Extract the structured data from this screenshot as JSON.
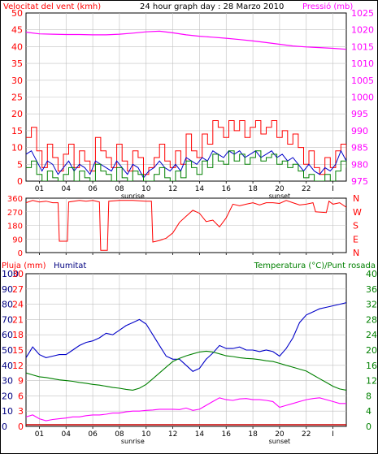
{
  "header": {
    "left_label": "Velocitat del vent (kmh)",
    "title": "24 hour graph day : 28 Marzo 2010",
    "right_label": "Pressió (mb)"
  },
  "colors": {
    "red": "#ff0000",
    "magenta": "#ff00ff",
    "blue": "#0000c8",
    "green": "#008000",
    "navy": "#000080",
    "dark_red": "#cc0000",
    "grid": "#c0c0c0"
  },
  "x_axis": {
    "tick_labels": [
      "01",
      "04",
      "06",
      "08",
      "10",
      "12",
      "14",
      "16",
      "18",
      "20",
      "22",
      "I"
    ],
    "sunrise_label": "sunrise",
    "sunset_label": "sunset"
  },
  "chart_data": [
    {
      "type": "line",
      "name": "wind",
      "left_axis": {
        "label": "Velocitat del vent (kmh)",
        "range": [
          0,
          50
        ],
        "ticks": [
          0,
          5,
          10,
          15,
          20,
          25,
          30,
          35,
          40,
          45,
          50
        ]
      },
      "right_axis": {
        "label": "Pressió (mb)",
        "range": [
          975,
          1025
        ],
        "ticks": [
          975,
          980,
          985,
          990,
          995,
          1000,
          1005,
          1010,
          1015,
          1020,
          1025
        ]
      },
      "x_range": [
        0,
        24
      ],
      "series": [
        {
          "color": "red",
          "axis": "left",
          "x": [
            0,
            0.4,
            0.8,
            1.2,
            1.6,
            2.0,
            2.4,
            2.8,
            3.2,
            3.6,
            4.0,
            4.4,
            4.8,
            5.2,
            5.6,
            6.0,
            6.4,
            6.8,
            7.2,
            7.6,
            8.0,
            8.4,
            8.8,
            9.2,
            9.6,
            10.0,
            10.4,
            10.8,
            11.2,
            11.6,
            12.0,
            12.4,
            12.8,
            13.2,
            13.6,
            14.0,
            14.4,
            14.8,
            15.2,
            15.6,
            16.0,
            16.4,
            16.8,
            17.2,
            17.6,
            18.0,
            18.4,
            18.8,
            19.2,
            19.6,
            20.0,
            20.4,
            20.8,
            21.2,
            21.6,
            22.0,
            22.4,
            22.8,
            23.2,
            23.6,
            24.0
          ],
          "y": [
            13,
            16,
            9,
            4,
            11,
            7,
            3,
            8,
            11,
            4,
            9,
            6,
            3,
            13,
            9,
            7,
            4,
            11,
            6,
            3,
            9,
            7,
            2,
            4,
            7,
            11,
            6,
            4,
            9,
            5,
            14,
            9,
            7,
            14,
            11,
            18,
            16,
            13,
            18,
            15,
            18,
            13,
            16,
            18,
            14,
            16,
            18,
            13,
            15,
            11,
            14,
            10,
            5,
            9,
            4,
            2,
            7,
            4,
            9,
            11,
            7
          ]
        },
        {
          "color": "blue",
          "axis": "left",
          "x": [
            0,
            0.4,
            0.8,
            1.2,
            1.6,
            2.0,
            2.4,
            2.8,
            3.2,
            3.6,
            4.0,
            4.4,
            4.8,
            5.2,
            5.6,
            6.0,
            6.4,
            6.8,
            7.2,
            7.6,
            8.0,
            8.4,
            8.8,
            9.2,
            9.6,
            10.0,
            10.4,
            10.8,
            11.2,
            11.6,
            12.0,
            12.4,
            12.8,
            13.2,
            13.6,
            14.0,
            14.4,
            14.8,
            15.2,
            15.6,
            16.0,
            16.4,
            16.8,
            17.2,
            17.6,
            18.0,
            18.4,
            18.8,
            19.2,
            19.6,
            20.0,
            20.4,
            20.8,
            21.2,
            21.6,
            22.0,
            22.4,
            22.8,
            23.2,
            23.6,
            24.0
          ],
          "y": [
            8,
            9,
            6,
            3,
            6,
            5,
            2,
            4,
            6,
            3,
            5,
            4,
            2,
            6,
            5,
            4,
            3,
            6,
            4,
            2,
            5,
            4,
            1,
            3,
            4,
            6,
            4,
            3,
            5,
            3,
            7,
            6,
            5,
            7,
            6,
            9,
            8,
            7,
            9,
            8,
            9,
            7,
            8,
            9,
            7,
            8,
            9,
            7,
            8,
            6,
            7,
            5,
            3,
            5,
            3,
            2,
            4,
            3,
            5,
            9,
            6
          ]
        },
        {
          "color": "green",
          "axis": "left",
          "x": [
            0,
            0.4,
            0.8,
            1.2,
            1.6,
            2.0,
            2.4,
            2.8,
            3.2,
            3.6,
            4.0,
            4.4,
            4.8,
            5.2,
            5.6,
            6.0,
            6.4,
            6.8,
            7.2,
            7.6,
            8.0,
            8.4,
            8.8,
            9.2,
            9.6,
            10.0,
            10.4,
            10.8,
            11.2,
            11.6,
            12.0,
            12.4,
            12.8,
            13.2,
            13.6,
            14.0,
            14.4,
            14.8,
            15.2,
            15.6,
            16.0,
            16.4,
            16.8,
            17.2,
            17.6,
            18.0,
            18.4,
            18.8,
            19.2,
            19.6,
            20.0,
            20.4,
            20.8,
            21.2,
            21.6,
            22.0,
            22.4,
            22.8,
            23.2,
            23.6,
            24.0
          ],
          "y": [
            4,
            6,
            2,
            0,
            3,
            1,
            0,
            2,
            4,
            0,
            3,
            1,
            0,
            5,
            3,
            2,
            0,
            4,
            1,
            0,
            3,
            2,
            0,
            0,
            2,
            4,
            1,
            0,
            3,
            1,
            6,
            4,
            2,
            6,
            4,
            8,
            6,
            5,
            9,
            6,
            8,
            5,
            7,
            9,
            6,
            7,
            8,
            5,
            6,
            4,
            5,
            3,
            1,
            2,
            0,
            0,
            2,
            0,
            3,
            6,
            4
          ]
        },
        {
          "color": "magenta",
          "axis": "right",
          "x": [
            0,
            1,
            2,
            3,
            4,
            5,
            6,
            7,
            8,
            9,
            10,
            11,
            12,
            13,
            14,
            15,
            16,
            17,
            18,
            19,
            20,
            21,
            22,
            23,
            24
          ],
          "y": [
            1019.3,
            1018.8,
            1018.7,
            1018.6,
            1018.6,
            1018.5,
            1018.5,
            1018.7,
            1019,
            1019.4,
            1019.6,
            1019.1,
            1018.5,
            1018.1,
            1017.8,
            1017.5,
            1017.1,
            1016.7,
            1016.2,
            1015.7,
            1015.2,
            1014.9,
            1014.7,
            1014.5,
            1014.2
          ]
        }
      ]
    },
    {
      "type": "line",
      "name": "direction",
      "left_axis": {
        "range": [
          0,
          360
        ],
        "ticks": [
          0,
          90,
          180,
          270,
          360
        ]
      },
      "right_axis": {
        "tick_labels": [
          "N",
          "W",
          "S",
          "E",
          "N"
        ]
      },
      "x_range": [
        0,
        24
      ],
      "series": [
        {
          "color": "red",
          "x": [
            0,
            0.5,
            1,
            1.5,
            2,
            2.4,
            2.5,
            3.1,
            3.2,
            4,
            4.5,
            5,
            5.5,
            5.6,
            6.1,
            6.2,
            7,
            8,
            9,
            9.4,
            9.5,
            10,
            10.5,
            11,
            11.5,
            12,
            12.5,
            13,
            13.5,
            14,
            14.5,
            15,
            15.5,
            16,
            16.5,
            17,
            17.5,
            18,
            18.5,
            19,
            19.5,
            20,
            20.5,
            21,
            21.5,
            21.7,
            22.5,
            22.7,
            23,
            23.5,
            24
          ],
          "y": [
            330,
            345,
            335,
            340,
            330,
            330,
            75,
            75,
            335,
            345,
            340,
            345,
            335,
            15,
            15,
            340,
            345,
            345,
            340,
            340,
            70,
            80,
            95,
            130,
            200,
            240,
            280,
            260,
            205,
            215,
            170,
            230,
            320,
            310,
            320,
            330,
            315,
            330,
            330,
            325,
            345,
            330,
            315,
            320,
            330,
            270,
            265,
            340,
            320,
            330,
            300
          ]
        }
      ]
    },
    {
      "type": "line",
      "name": "bottom",
      "left_axis_rain": {
        "label": "Pluja (mm)",
        "range": [
          0,
          30
        ],
        "ticks": [
          0,
          3,
          6,
          9,
          12,
          15,
          18,
          21,
          24,
          27,
          30
        ]
      },
      "left_axis_humidity": {
        "label": "Humitat",
        "range": [
          0,
          100
        ],
        "ticks": [
          0,
          10,
          20,
          30,
          40,
          50,
          60,
          70,
          80,
          90,
          100
        ]
      },
      "right_axis": {
        "label": "Temperatura (°C)/Punt rosada",
        "range": [
          0,
          40
        ],
        "ticks": [
          0,
          4,
          8,
          12,
          16,
          20,
          24,
          28,
          32,
          36,
          40
        ]
      },
      "x_range": [
        0,
        24
      ],
      "series": [
        {
          "color": "blue",
          "axis": "humidity",
          "x": [
            0,
            0.5,
            1,
            1.5,
            2,
            2.5,
            3,
            3.5,
            4,
            4.5,
            5,
            5.5,
            6,
            6.5,
            7,
            7.5,
            8,
            8.5,
            9,
            9.5,
            10,
            10.5,
            11,
            11.5,
            12,
            12.5,
            13,
            13.5,
            14,
            14.5,
            15,
            15.5,
            16,
            16.5,
            17,
            17.5,
            18,
            18.5,
            19,
            19.5,
            20,
            20.5,
            21,
            21.5,
            22,
            22.5,
            23,
            23.5,
            24
          ],
          "y": [
            45,
            52,
            47,
            45,
            46,
            47,
            47,
            50,
            53,
            55,
            56,
            58,
            61,
            60,
            63,
            66,
            68,
            70,
            67,
            60,
            53,
            46,
            44,
            44,
            40,
            36,
            38,
            44,
            48,
            53,
            51,
            51,
            52,
            50,
            50,
            49,
            50,
            49,
            46,
            51,
            58,
            68,
            73,
            75,
            77,
            78,
            79,
            80,
            81
          ]
        },
        {
          "color": "green",
          "axis": "temperature",
          "x": [
            0,
            0.5,
            1,
            1.5,
            2,
            2.5,
            3,
            3.5,
            4,
            4.5,
            5,
            5.5,
            6,
            6.5,
            7,
            7.5,
            8,
            8.5,
            9,
            9.5,
            10,
            10.5,
            11,
            11.5,
            12,
            12.5,
            13,
            13.5,
            14,
            14.5,
            15,
            15.5,
            16,
            16.5,
            17,
            17.5,
            18,
            18.5,
            19,
            19.5,
            20,
            20.5,
            21,
            21.5,
            22,
            22.5,
            23,
            23.5,
            24
          ],
          "y": [
            14,
            13.5,
            13,
            12.8,
            12.5,
            12.2,
            12,
            11.8,
            11.5,
            11.3,
            11,
            10.8,
            10.5,
            10.2,
            10,
            9.7,
            9.5,
            10,
            11,
            12.5,
            14,
            15.5,
            17,
            17.8,
            18.5,
            19,
            19.5,
            19.7,
            19.5,
            19,
            18.5,
            18.3,
            18,
            17.8,
            17.7,
            17.5,
            17.2,
            17,
            16.5,
            16,
            15.5,
            15,
            14.5,
            13.5,
            12.5,
            11.5,
            10.5,
            9.8,
            9.5
          ]
        },
        {
          "color": "magenta",
          "axis": "temperature",
          "x": [
            0,
            0.5,
            1,
            1.5,
            2,
            2.5,
            3,
            3.5,
            4,
            4.5,
            5,
            5.5,
            6,
            6.5,
            7,
            7.5,
            8,
            8.5,
            9,
            9.5,
            10,
            10.5,
            11,
            11.5,
            12,
            12.5,
            13,
            13.5,
            14,
            14.5,
            15,
            15.5,
            16,
            16.5,
            17,
            17.5,
            18,
            18.5,
            19,
            19.5,
            20,
            20.5,
            21,
            21.5,
            22,
            22.5,
            23,
            23.5,
            24
          ],
          "y": [
            2.5,
            3,
            2,
            1.5,
            1.8,
            2,
            2.2,
            2.5,
            2.5,
            2.8,
            3,
            3,
            3.2,
            3.5,
            3.5,
            3.8,
            4,
            4,
            4.2,
            4.3,
            4.5,
            4.5,
            4.5,
            4.4,
            4.8,
            4.2,
            4.5,
            5.5,
            6.5,
            7.5,
            7,
            6.8,
            7.2,
            7.3,
            7,
            7,
            6.8,
            6.5,
            5,
            5.5,
            6,
            6.5,
            7,
            7.3,
            7.5,
            7,
            6.5,
            6,
            6
          ]
        },
        {
          "color": "dark_red",
          "axis": "rain",
          "x": [
            0,
            24
          ],
          "y": [
            0,
            0
          ]
        }
      ]
    }
  ]
}
